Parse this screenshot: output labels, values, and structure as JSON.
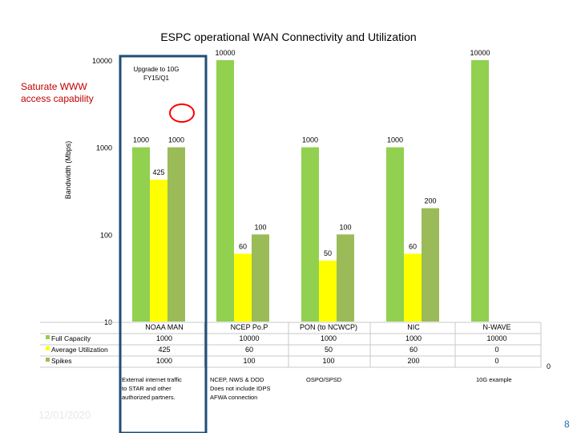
{
  "chart_data": {
    "type": "bar",
    "title": "ESPC operational WAN Connectivity and Utilization",
    "ylabel": "Bandwidth (Mbps)",
    "yscale": "log",
    "ylim": [
      10,
      10000
    ],
    "yticks": [
      "10",
      "100",
      "1000",
      "10000"
    ],
    "categories": [
      "NOAA MAN",
      "NCEP Po.P",
      "PON (to NCWCP)",
      "NIC",
      "N-WAVE"
    ],
    "series": [
      {
        "name": "Full Capacity",
        "color": "#92d050",
        "values": [
          1000,
          10000,
          1000,
          1000,
          10000
        ]
      },
      {
        "name": "Average Utilization",
        "color": "#ffff00",
        "values": [
          425,
          60,
          50,
          60,
          0
        ]
      },
      {
        "name": "Spikes",
        "color": "#9bbb59",
        "values": [
          1000,
          100,
          100,
          200,
          0
        ]
      }
    ],
    "table_rows": [
      [
        "1000",
        "10000",
        "1000",
        "1000",
        "10000"
      ],
      [
        "425",
        "60",
        "50",
        "60",
        "0"
      ],
      [
        "1000",
        "100",
        "100",
        "200",
        "0"
      ]
    ],
    "data_labels": [
      "1000",
      "425",
      "1000",
      "10000",
      "60",
      "100",
      "1000",
      "50",
      "100",
      "1000",
      "60",
      "200",
      "10000"
    ],
    "legend_position": "bottom-left (table)",
    "grid": false
  },
  "annotations": {
    "saturate": "Saturate WWW access capability",
    "upgrade": "Upgrade to 10G FY15/Q1",
    "below_1": "External internet traffic to STAR and other authorized partners.",
    "below_2": "NCEP, NWS & DOD Does not include IDPS AFWA connection",
    "below_3": "OSPO/SPSD",
    "below_5": "10G example",
    "stray_zero": "0"
  },
  "footer": {
    "date": "12/01/2020",
    "page_number": "8"
  },
  "colors": {
    "highlight_box": "#1f4e79",
    "circle": "#ff0000"
  }
}
